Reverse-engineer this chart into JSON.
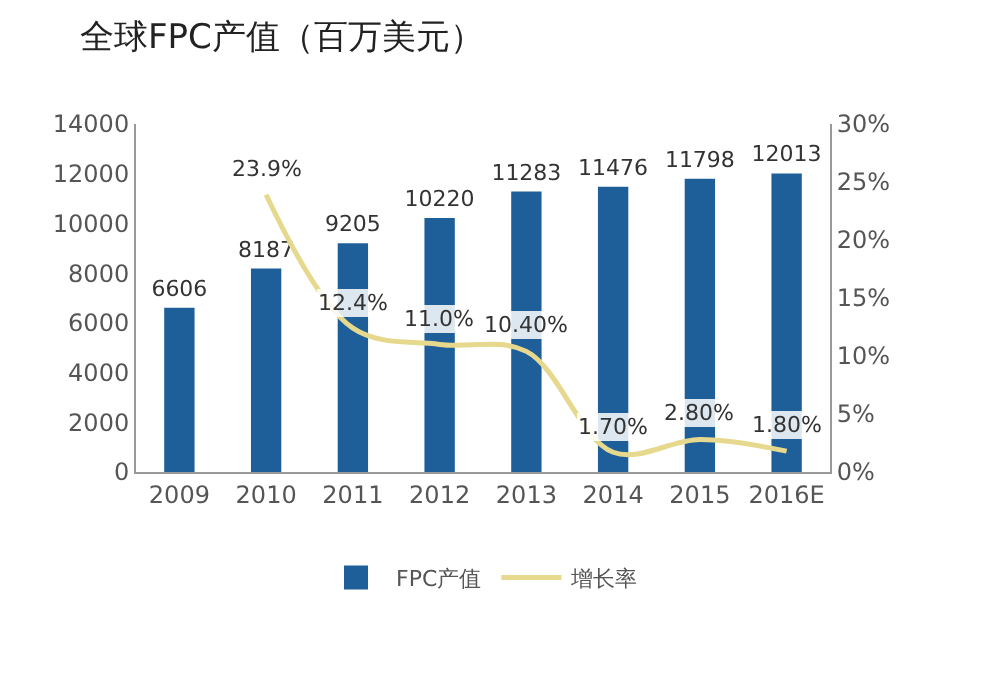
{
  "chart_data": {
    "type": "bar",
    "title": "全球FPC产值（百万美元）",
    "categories": [
      "2009",
      "2010",
      "2011",
      "2012",
      "2013",
      "2014",
      "2015",
      "2016E"
    ],
    "series": [
      {
        "name": "FPC产值",
        "color": "#1f5f99",
        "values": [
          6606,
          8187,
          9205,
          10220,
          11283,
          11476,
          11798,
          12013
        ],
        "data_labels": true
      },
      {
        "name": "增长率",
        "type": "line",
        "axis": "y2",
        "color": "#e6d88c",
        "values": [
          null,
          23.9,
          12.4,
          11.0,
          10.4,
          1.7,
          2.8,
          1.8
        ],
        "value_labels": [
          null,
          "23.9%",
          "12.4%",
          "11.0%",
          "10.40%",
          "1.70%",
          "2.80%",
          "1.80%"
        ]
      }
    ],
    "ylim": [
      0,
      14000
    ],
    "yticks": [
      0,
      2000,
      4000,
      6000,
      8000,
      10000,
      12000,
      14000
    ],
    "y2lim": [
      0,
      30
    ],
    "y2ticks": [
      {
        "value": 0,
        "label": "0%"
      },
      {
        "value": 5,
        "label": "5%"
      },
      {
        "value": 10,
        "label": "10%"
      },
      {
        "value": 15,
        "label": "15%"
      },
      {
        "value": 20,
        "label": "20%"
      },
      {
        "value": 25,
        "label": "25%"
      },
      {
        "value": 30,
        "label": "30%"
      }
    ],
    "grid": false,
    "legend": "bottom",
    "marker": "none",
    "line_style": "solid"
  }
}
